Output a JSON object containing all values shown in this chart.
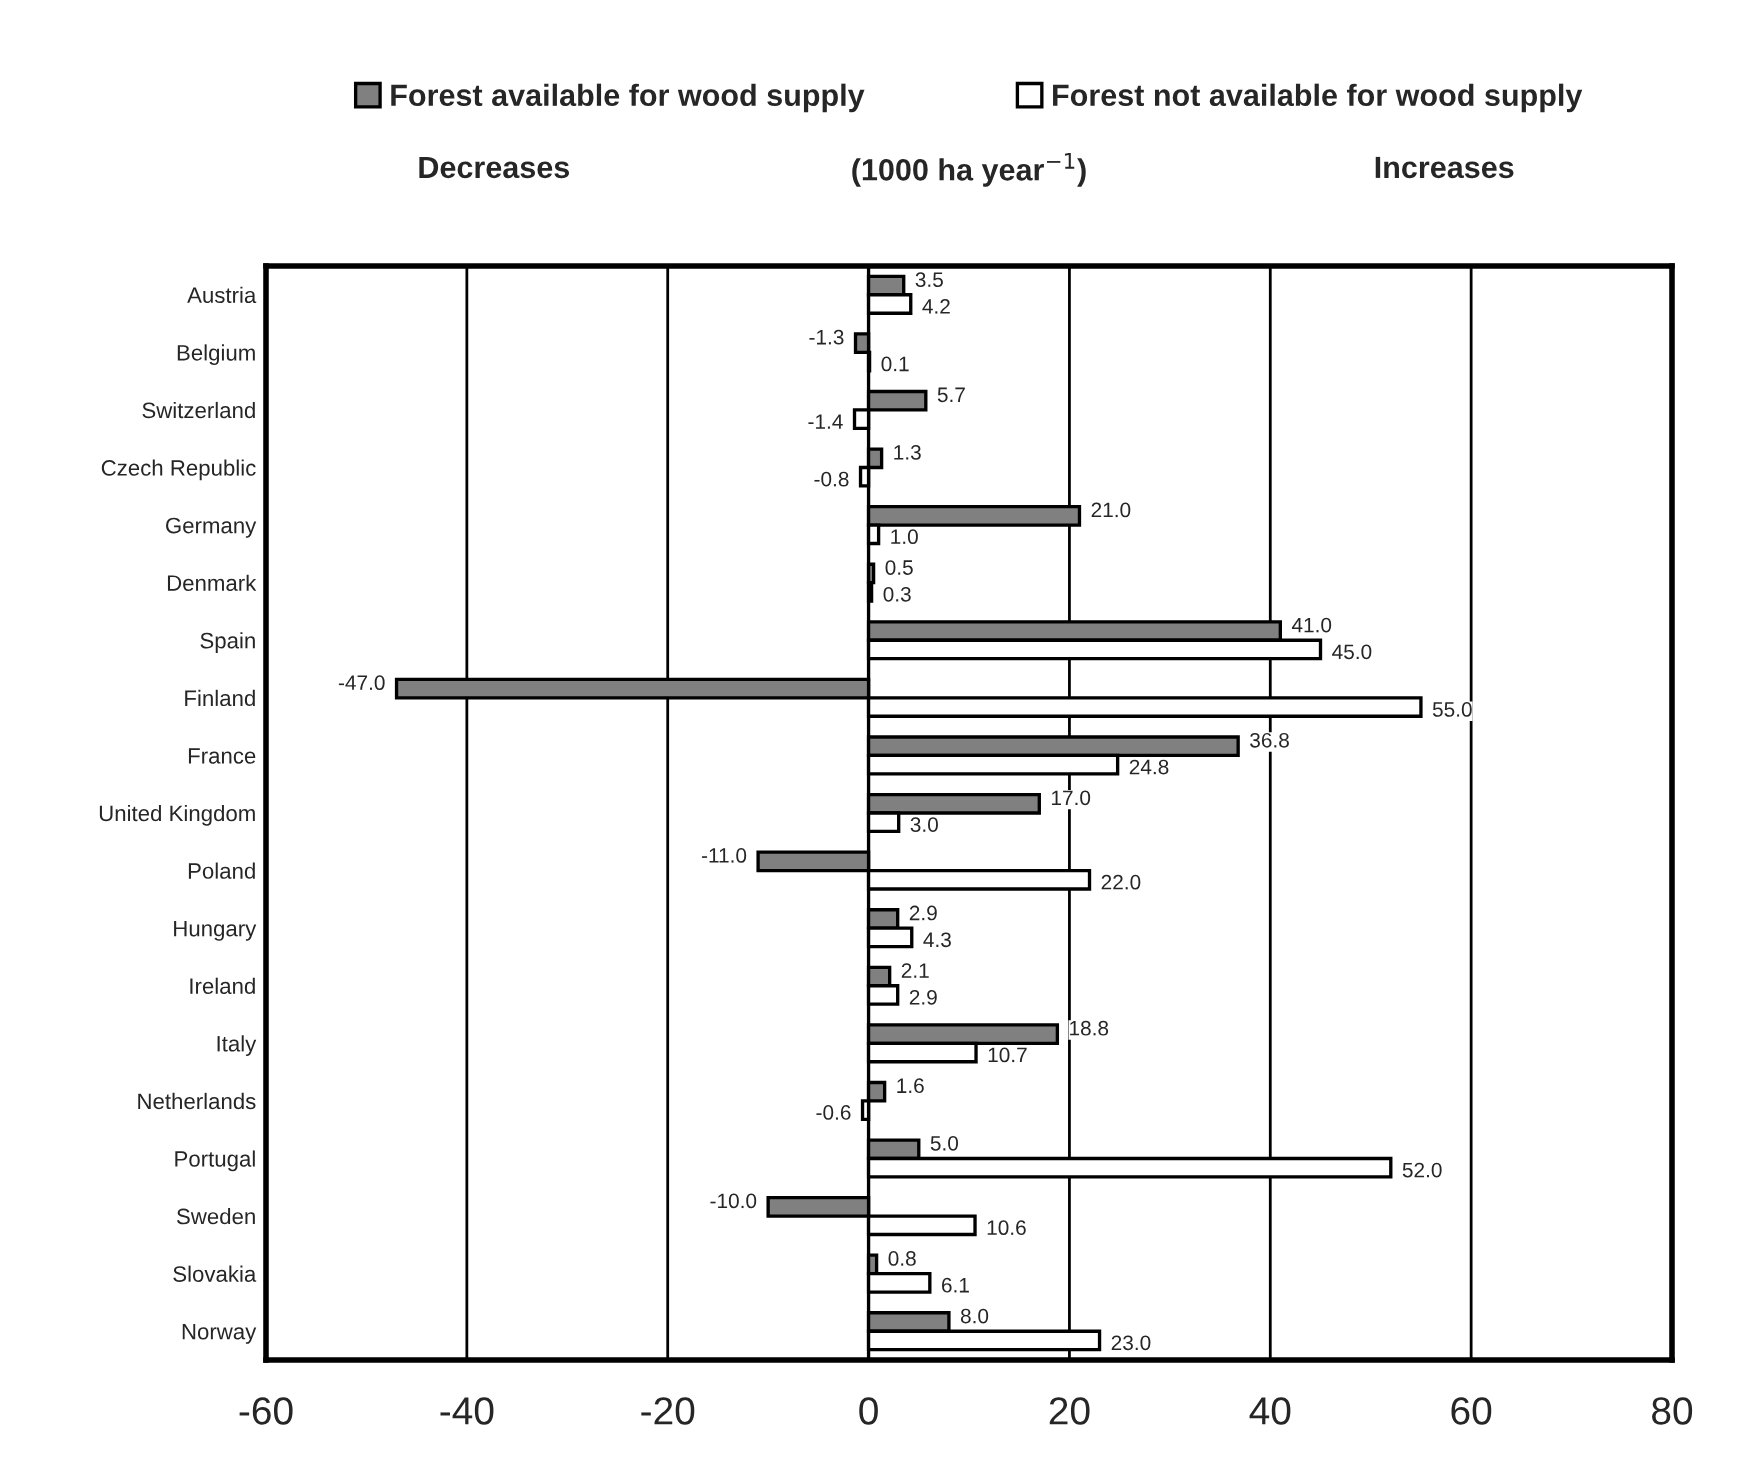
{
  "chart_data": {
    "type": "bar",
    "orientation": "horizontal",
    "categories": [
      "Austria",
      "Belgium",
      "Switzerland",
      "Czech Republic",
      "Germany",
      "Denmark",
      "Spain",
      "Finland",
      "France",
      "United Kingdom",
      "Poland",
      "Hungary",
      "Ireland",
      "Italy",
      "Netherlands",
      "Portugal",
      "Sweden",
      "Slovakia",
      "Norway"
    ],
    "series": [
      {
        "name": "Forest available for wood supply",
        "color": "#808080",
        "values": [
          3.5,
          -1.3,
          5.7,
          1.3,
          21.0,
          0.5,
          41.0,
          -47.0,
          36.8,
          17.0,
          -11.0,
          2.9,
          2.1,
          18.8,
          1.6,
          5.0,
          -10.0,
          0.8,
          8.0
        ],
        "value_labels": [
          "3.5",
          "-1.3",
          "5.7",
          "1.3",
          "21.0",
          "0.5",
          "41.0",
          "-47.0",
          "36.8",
          "17.0",
          "-11.0",
          "2.9",
          "2.1",
          "18.8",
          "1.6",
          "5.0",
          "-10.0",
          "0.8",
          "8.0"
        ]
      },
      {
        "name": "Forest not available for wood supply",
        "color": "#ffffff",
        "values": [
          4.2,
          0.1,
          -1.4,
          -0.8,
          1.0,
          0.3,
          45.0,
          55.0,
          24.8,
          3.0,
          22.0,
          4.3,
          2.9,
          10.7,
          -0.6,
          52.0,
          10.6,
          6.1,
          23.0
        ],
        "value_labels": [
          "4.2",
          "0.1",
          "-1.4",
          "-0.8",
          "1.0",
          "0.3",
          "45.0",
          "55.0",
          "24.8",
          "3.0",
          "22.0",
          "4.3",
          "2.9",
          "10.7",
          "-0.6",
          "52.0",
          "10.6",
          "6.1",
          "23.0"
        ]
      }
    ],
    "xlabel": "(1000 ha year$^{−1}$)",
    "annotations": [
      "Decreases",
      "Increases"
    ],
    "xlim": [
      -60,
      80
    ],
    "xticks": [
      -60,
      -40,
      -20,
      0,
      20,
      40,
      60,
      80
    ],
    "grid": "x",
    "legend": "top"
  }
}
